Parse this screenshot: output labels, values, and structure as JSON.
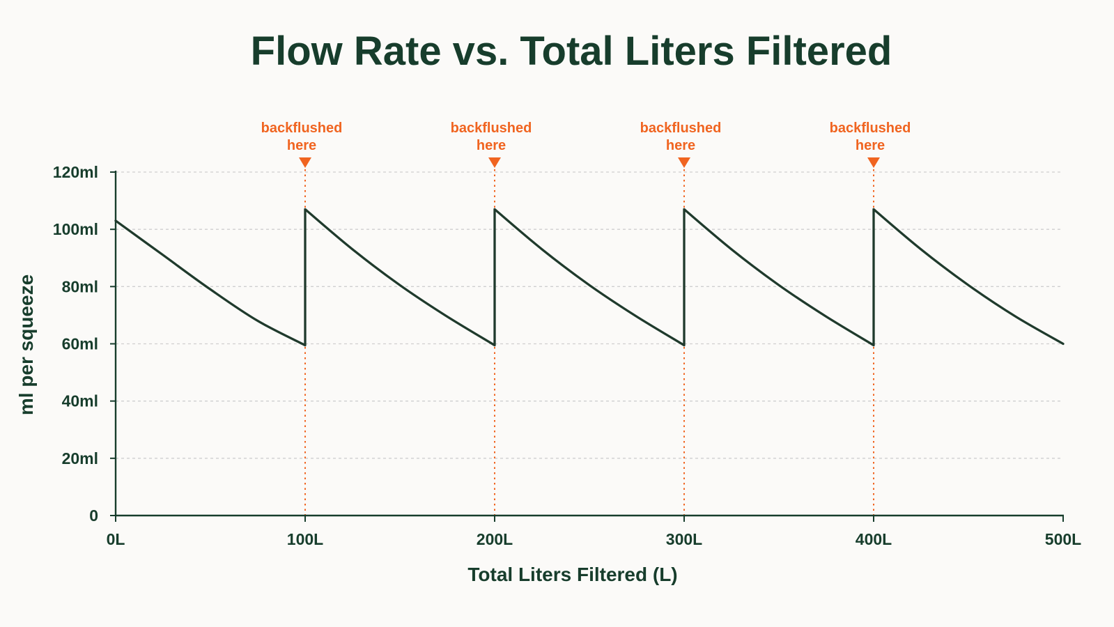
{
  "colors": {
    "background": "#fbfaf8",
    "text": "#173d2c",
    "line": "#1f3a2c",
    "axis": "#173d2c",
    "grid": "#cfcfcf",
    "annotation": "#f06420"
  },
  "chart_data": {
    "type": "line",
    "title": "Flow Rate vs. Total Liters Filtered",
    "xlabel": "Total Liters Filtered (L)",
    "ylabel": "ml per squeeze",
    "xlim": [
      0,
      500
    ],
    "ylim": [
      0,
      120
    ],
    "grid": true,
    "x_ticks": [
      0,
      100,
      200,
      300,
      400,
      500
    ],
    "x_tick_labels": [
      "0L",
      "100L",
      "200L",
      "300L",
      "400L",
      "500L"
    ],
    "y_ticks": [
      0,
      20,
      40,
      60,
      80,
      100,
      120
    ],
    "y_tick_labels": [
      "0",
      "20ml",
      "40ml",
      "60ml",
      "80ml",
      "100ml",
      "120ml"
    ],
    "series": [
      {
        "points": [
          [
            0,
            103
          ],
          [
            25,
            91
          ],
          [
            50,
            79
          ],
          [
            75,
            68
          ],
          [
            100,
            59.5
          ],
          [
            100,
            107
          ],
          [
            125,
            93
          ],
          [
            150,
            80.5
          ],
          [
            175,
            69.5
          ],
          [
            200,
            59.5
          ],
          [
            200,
            107
          ],
          [
            225,
            93
          ],
          [
            250,
            80.5
          ],
          [
            275,
            69.5
          ],
          [
            300,
            59.5
          ],
          [
            300,
            107
          ],
          [
            325,
            93
          ],
          [
            350,
            80.5
          ],
          [
            375,
            69.5
          ],
          [
            400,
            59.5
          ],
          [
            400,
            107
          ],
          [
            425,
            93
          ],
          [
            450,
            80.5
          ],
          [
            475,
            69.5
          ],
          [
            500,
            60
          ]
        ]
      }
    ],
    "annotations": [
      {
        "x": 100,
        "line1": "backflushed",
        "line2": "here"
      },
      {
        "x": 200,
        "line1": "backflushed",
        "line2": "here"
      },
      {
        "x": 300,
        "line1": "backflushed",
        "line2": "here"
      },
      {
        "x": 400,
        "line1": "backflushed",
        "line2": "here"
      }
    ]
  }
}
